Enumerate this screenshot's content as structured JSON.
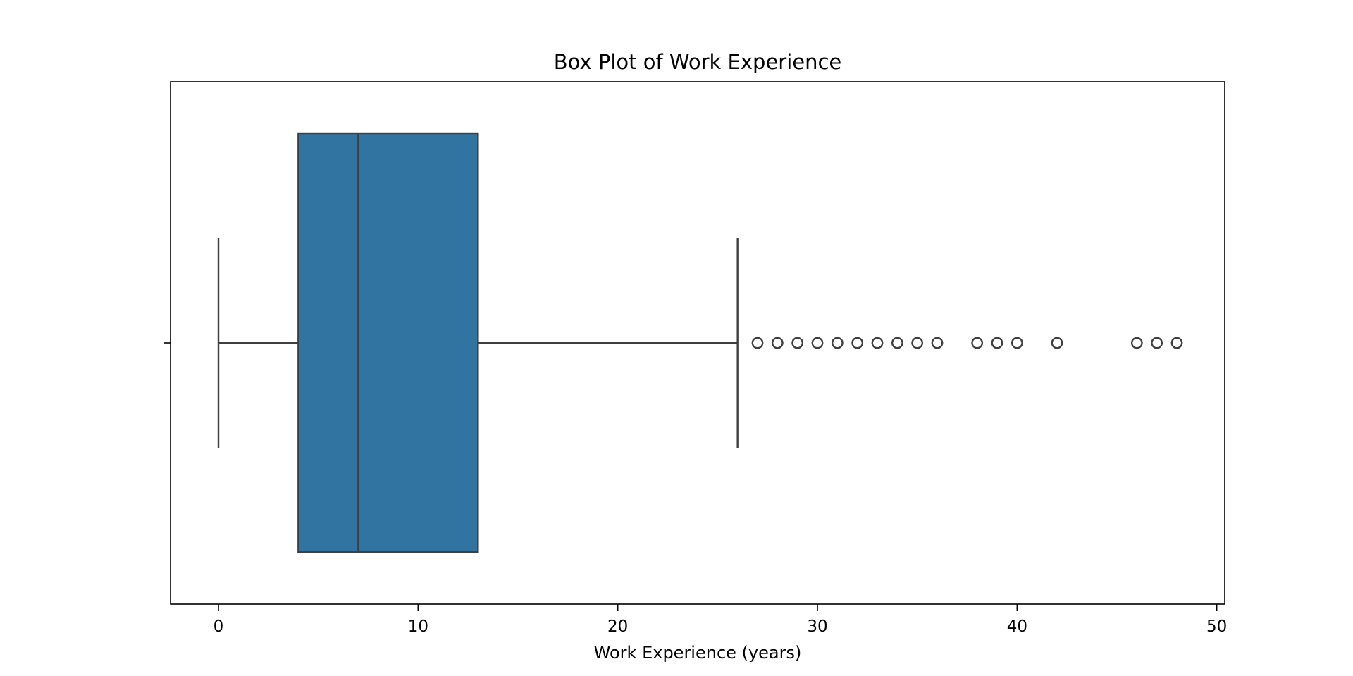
{
  "chart_data": {
    "type": "box",
    "orientation": "horizontal",
    "title": "Box Plot of Work Experience",
    "xlabel": "Work Experience (years)",
    "ylabel": "",
    "xlim": [
      -2.4,
      50.4
    ],
    "x_ticks": [
      0,
      10,
      20,
      30,
      40,
      50
    ],
    "x_tick_labels": [
      "0",
      "10",
      "20",
      "30",
      "40",
      "50"
    ],
    "grid": false,
    "box": {
      "whisker_low": 0,
      "q1": 4,
      "median": 7,
      "q3": 13,
      "whisker_high": 26
    },
    "outliers": [
      27,
      28,
      29,
      30,
      31,
      32,
      33,
      34,
      35,
      36,
      38,
      39,
      40,
      42,
      46,
      47,
      48
    ],
    "colors": {
      "box_fill": "#3274a1",
      "line": "#3f3f3f",
      "outlier_edge": "#3f3f3f",
      "axes": "#000000"
    }
  }
}
